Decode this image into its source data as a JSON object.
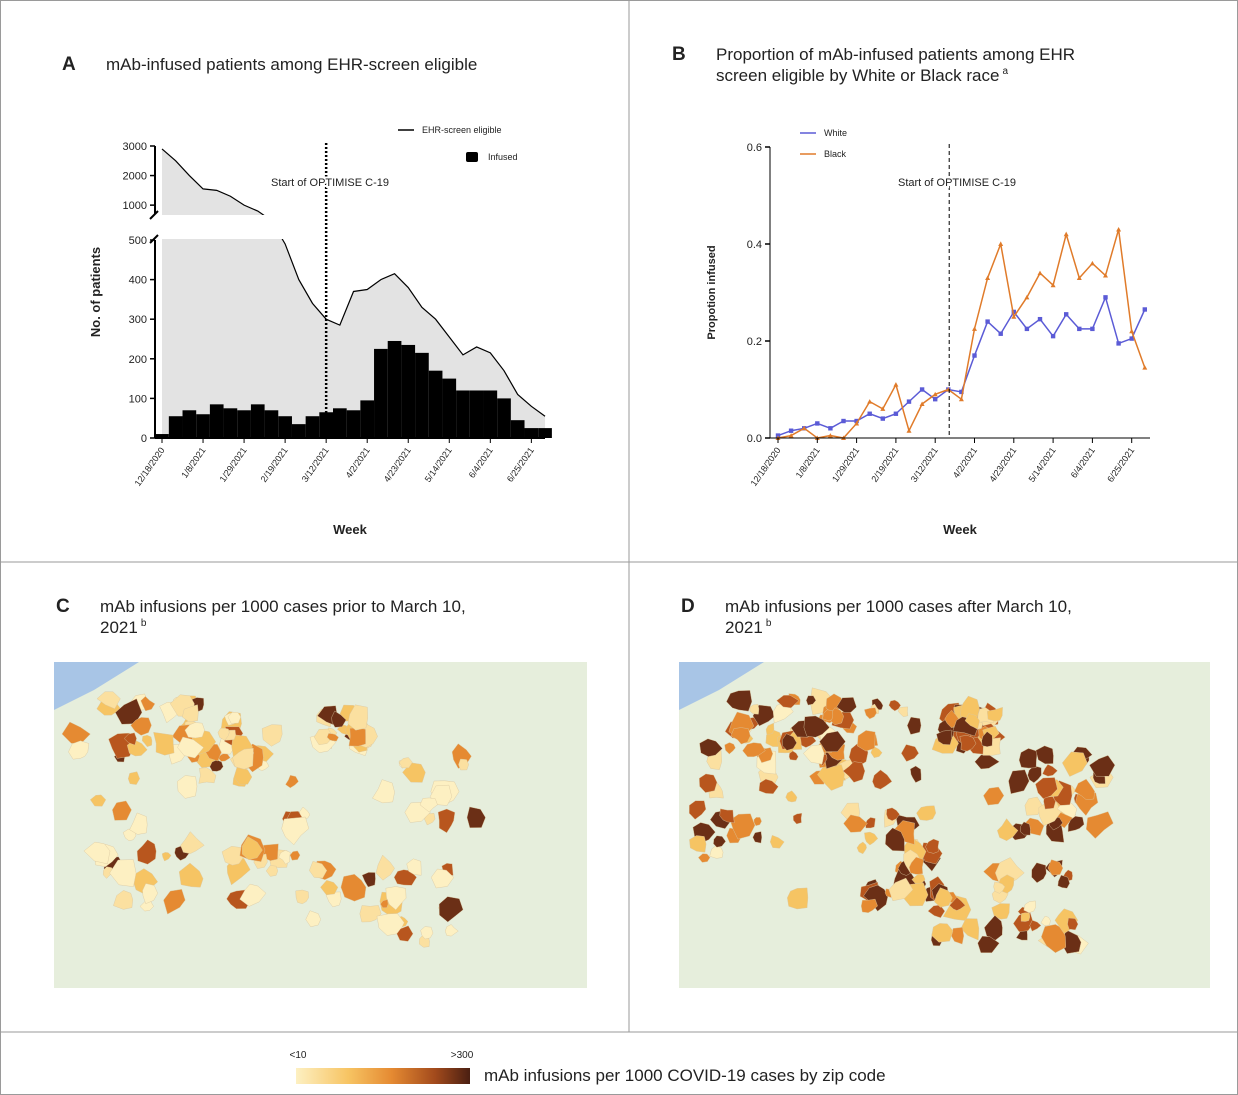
{
  "chart_data": [
    {
      "type": "combo",
      "label": "A",
      "title_lines": [
        "mAb-infused patients among EHR-screen eligible"
      ],
      "categories": [
        "12/18/2020",
        null,
        null,
        "1/8/2021",
        null,
        null,
        "1/29/2021",
        null,
        null,
        "2/19/2021",
        null,
        null,
        "3/12/2021",
        null,
        null,
        "4/2/2021",
        null,
        null,
        "4/23/2021",
        null,
        null,
        "5/14/2021",
        null,
        null,
        "6/4/2021",
        null,
        null,
        "6/25/2021",
        null
      ],
      "series": [
        {
          "name": "EHR-screen eligible",
          "type": "area",
          "color": "#000000",
          "fill": "#e3e3e3",
          "values": [
            2900,
            2500,
            2000,
            1550,
            1500,
            1300,
            1000,
            800,
            650,
            490,
            400,
            340,
            300,
            285,
            370,
            375,
            400,
            415,
            380,
            330,
            300,
            255,
            210,
            230,
            215,
            170,
            110,
            80,
            55
          ]
        },
        {
          "name": "Infused",
          "type": "bar",
          "color": "#000000",
          "values": [
            10,
            55,
            70,
            60,
            85,
            75,
            70,
            85,
            70,
            55,
            35,
            55,
            65,
            75,
            70,
            95,
            225,
            245,
            235,
            215,
            170,
            150,
            120,
            120,
            120,
            100,
            45,
            25,
            25
          ]
        }
      ],
      "ylim": [
        0,
        3000
      ],
      "ybreak": [
        500,
        700
      ],
      "yticks": [
        0,
        100,
        200,
        300,
        400,
        500,
        1000,
        2000,
        3000
      ],
      "y_label": "No. of patients",
      "x_label": "Week",
      "annotation": {
        "text": "Start of OPTIMISE C-19",
        "at": "3/12/2021"
      }
    },
    {
      "type": "line",
      "label": "B",
      "title_lines": [
        "Proportion of mAb-infused patients among EHR",
        "screen eligible by White or Black race"
      ],
      "title_note": "a",
      "categories": [
        "12/18/2020",
        null,
        null,
        "1/8/2021",
        null,
        null,
        "1/29/2021",
        null,
        null,
        "2/19/2021",
        null,
        null,
        "3/12/2021",
        null,
        null,
        "4/2/2021",
        null,
        null,
        "4/23/2021",
        null,
        null,
        "5/14/2021",
        null,
        null,
        "6/4/2021",
        null,
        null,
        "6/25/2021",
        null
      ],
      "series": [
        {
          "name": "White",
          "color": "#5b5bd6",
          "values": [
            0.005,
            0.015,
            0.02,
            0.03,
            0.02,
            0.035,
            0.035,
            0.05,
            0.04,
            0.05,
            0.075,
            0.1,
            0.08,
            0.1,
            0.095,
            0.17,
            0.24,
            0.215,
            0.26,
            0.225,
            0.245,
            0.21,
            0.255,
            0.225,
            0.225,
            0.29,
            0.195,
            0.205,
            0.265
          ]
        },
        {
          "name": "Black",
          "color": "#e07b2a",
          "values": [
            0.0,
            0.005,
            0.02,
            0.0,
            0.005,
            0.0,
            0.03,
            0.075,
            0.06,
            0.11,
            0.015,
            0.07,
            0.09,
            0.1,
            0.08,
            0.225,
            0.33,
            0.4,
            0.25,
            0.29,
            0.34,
            0.315,
            0.42,
            0.33,
            0.36,
            0.335,
            0.43,
            0.22,
            0.145
          ]
        }
      ],
      "ylim": [
        0,
        0.6
      ],
      "yticks": [
        {
          "value": 0,
          "label": "0.0"
        },
        0.2,
        0.4,
        0.6
      ],
      "y_label": "Propotion infused",
      "x_label": "Week",
      "annotation": {
        "text": "Start of OPTIMISE C-19",
        "at": "3/12/2021"
      }
    }
  ],
  "maps": [
    {
      "label": "C",
      "title_lines": [
        "mAb infusions per 1000 cases prior to March 10,",
        "2021"
      ],
      "title_note": "b"
    },
    {
      "label": "D",
      "title_lines": [
        "mAb infusions per 1000 cases after March 10,",
        "2021"
      ],
      "title_note": "b"
    }
  ],
  "legend": {
    "low": "<10",
    "high": ">300",
    "text": "mAb infusions per 1000 COVID-19 cases by zip code"
  }
}
